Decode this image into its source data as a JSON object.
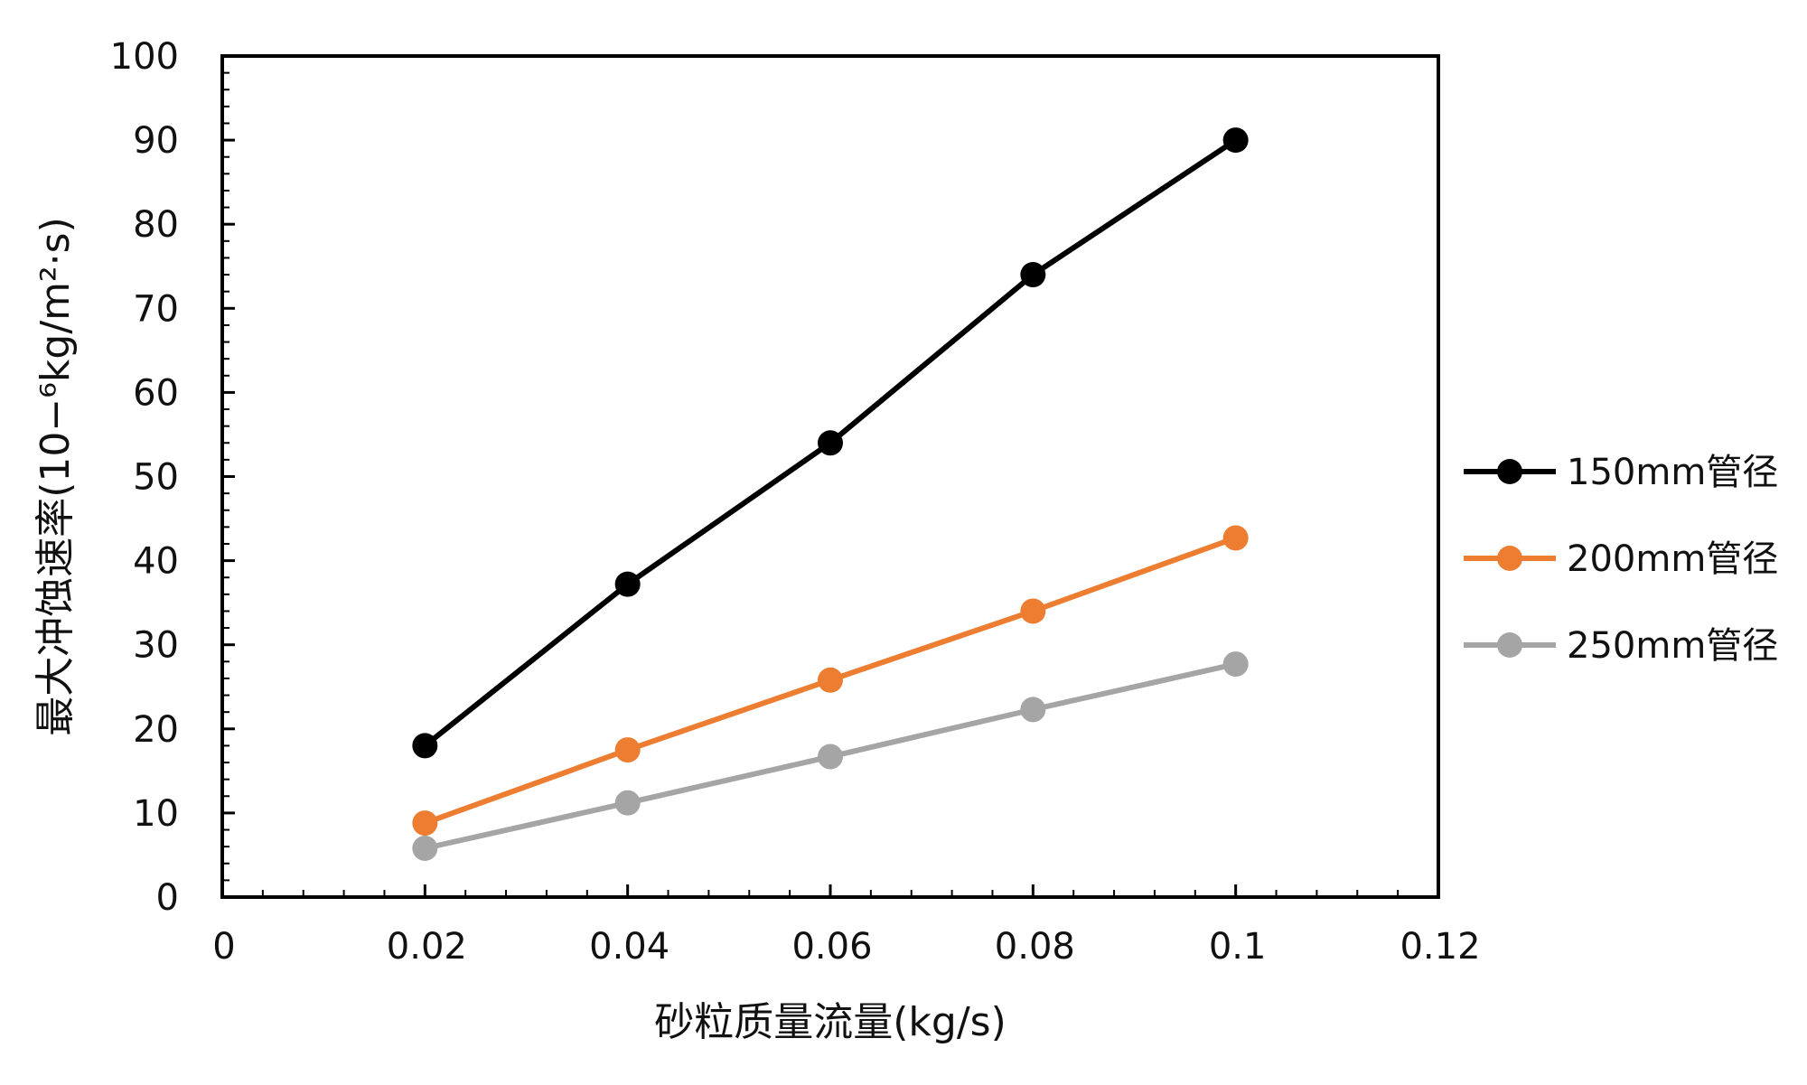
{
  "chart_data": {
    "type": "line",
    "title": "",
    "xlabel": "砂粒质量流量(kg/s)",
    "ylabel": "最大冲蚀速率(10−⁶kg/m²·s)",
    "xlim": [
      0,
      0.12
    ],
    "ylim": [
      0,
      100
    ],
    "x_ticks": [
      "0",
      "0.02",
      "0.04",
      "0.06",
      "0.08",
      "0.1",
      "0.12"
    ],
    "y_ticks": [
      "0",
      "10",
      "20",
      "30",
      "40",
      "50",
      "60",
      "70",
      "80",
      "90",
      "100"
    ],
    "grid": false,
    "legend_position": "right",
    "x": [
      0.02,
      0.04,
      0.06,
      0.08,
      0.1
    ],
    "series": [
      {
        "name": "150mm管径",
        "color": "#000000",
        "values": [
          18,
          37.2,
          54,
          74,
          90
        ]
      },
      {
        "name": "200mm管径",
        "color": "#ED7D31",
        "values": [
          8.8,
          17.5,
          25.8,
          34,
          42.7
        ]
      },
      {
        "name": "250mm管径",
        "color": "#A5A5A5",
        "values": [
          5.8,
          11.2,
          16.7,
          22.3,
          27.7
        ]
      }
    ]
  }
}
